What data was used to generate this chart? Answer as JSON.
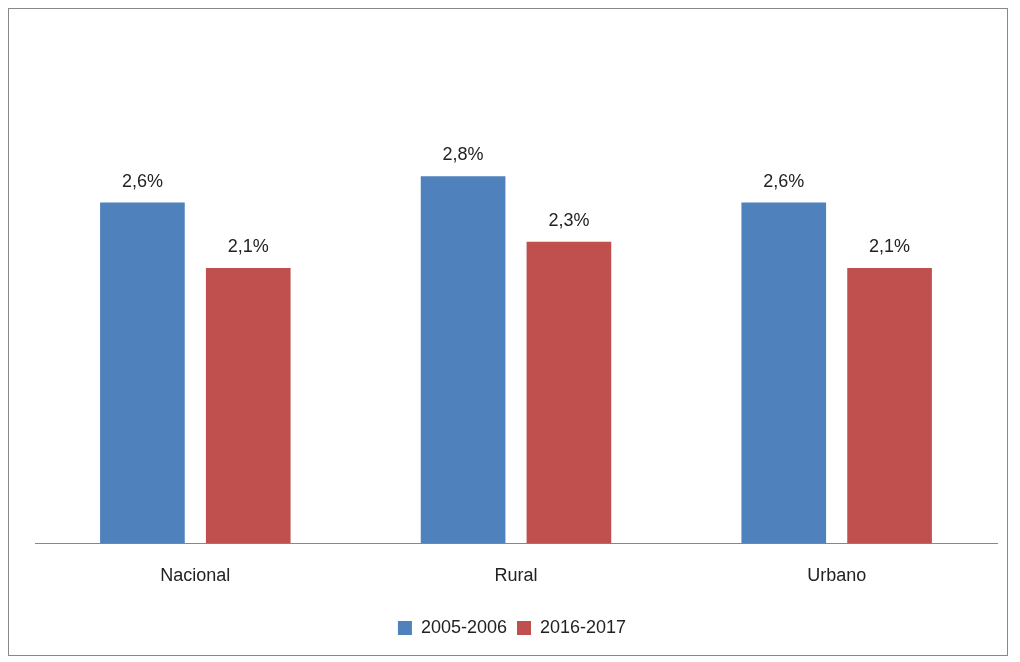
{
  "chart_data": {
    "type": "bar",
    "categories": [
      "Nacional",
      "Rural",
      "Urbano"
    ],
    "series": [
      {
        "name": "2005-2006",
        "color": "#4f81bd",
        "values": [
          2.6,
          2.8,
          2.6
        ],
        "value_labels": [
          "2,6%",
          "2,8%",
          "2,6%"
        ]
      },
      {
        "name": "2016-2017",
        "color": "#c0504d",
        "values": [
          2.1,
          2.3,
          2.1
        ],
        "value_labels": [
          "2,1%",
          "2,3%",
          "2,1%"
        ]
      }
    ],
    "tick_labels": "x",
    "grid": false,
    "legend": "bottom"
  }
}
